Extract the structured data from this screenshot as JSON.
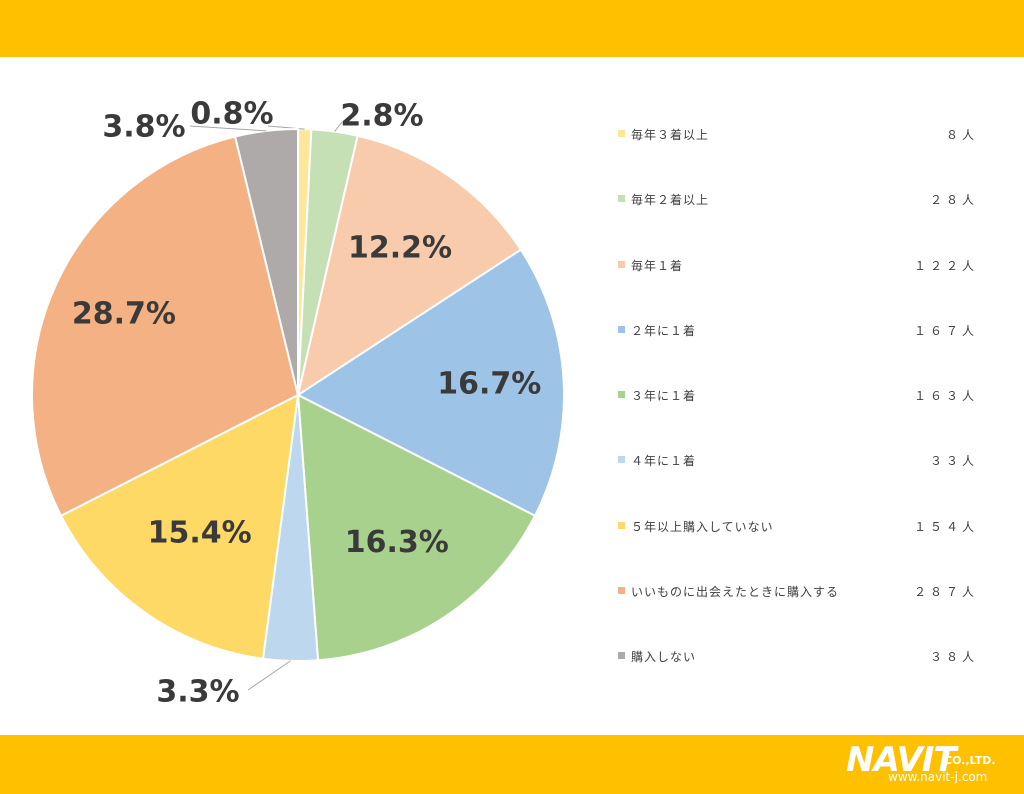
{
  "colors": {
    "band": "#FFC000",
    "logo": "#ffffff"
  },
  "logo": {
    "word": "NAVIT",
    "company": "CO.,LTD.",
    "url": "www.navit-j.com"
  },
  "chart_data": {
    "type": "pie",
    "slices": [
      {
        "label": "毎年３着以上",
        "count": "８人",
        "value": 8,
        "percent": "0.8%",
        "color": "#FFE699"
      },
      {
        "label": "毎年２着以上",
        "count": "２８人",
        "value": 28,
        "percent": "2.8%",
        "color": "#C5E0B4"
      },
      {
        "label": "毎年１着",
        "count": "１２２人",
        "value": 122,
        "percent": "12.2%",
        "color": "#F8CBAD"
      },
      {
        "label": "２年に１着",
        "count": "１６７人",
        "value": 167,
        "percent": "16.7%",
        "color": "#9DC3E6"
      },
      {
        "label": "３年に１着",
        "count": "１６３人",
        "value": 163,
        "percent": "16.3%",
        "color": "#A9D18E"
      },
      {
        "label": "４年に１着",
        "count": "３３人",
        "value": 33,
        "percent": "3.3%",
        "color": "#BDD7EE"
      },
      {
        "label": "５年以上購入していない",
        "count": "１５４人",
        "value": 154,
        "percent": "15.4%",
        "color": "#FFD966"
      },
      {
        "label": "いいものに出会えたときに購入する",
        "count": "２８７人",
        "value": 287,
        "percent": "28.7%",
        "color": "#F4B183"
      },
      {
        "label": "購入しない",
        "count": "３８人",
        "value": 38,
        "percent": "3.8%",
        "color": "#AEAAAA"
      }
    ],
    "legend_position": "right"
  }
}
